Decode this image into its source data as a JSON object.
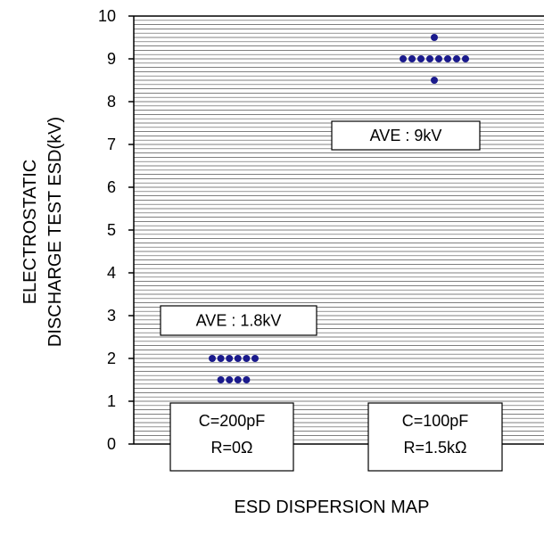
{
  "chart_data": {
    "type": "scatter",
    "ylabel_lines": [
      "ELECTROSTATIC",
      "DISCHARGE TEST ESD(kV)"
    ],
    "caption": "ESD DISPERSION MAP",
    "ylim": [
      0,
      10
    ],
    "y_ticks": [
      "0",
      "1",
      "2",
      "3",
      "4",
      "5",
      "6",
      "7",
      "8",
      "9",
      "10"
    ],
    "minor_grid_step": 0.1,
    "grid": true,
    "series": [
      {
        "condition_lines": [
          "C=200pF",
          "R=0Ω"
        ],
        "average_label": "AVE : 1.8kV",
        "points": [
          {
            "y": 2.0,
            "count": 6
          },
          {
            "y": 1.5,
            "count": 4
          }
        ]
      },
      {
        "condition_lines": [
          "C=100pF",
          "R=1.5kΩ"
        ],
        "average_label": "AVE : 9kV",
        "points": [
          {
            "y": 9.5,
            "count": 1
          },
          {
            "y": 9.0,
            "count": 8
          },
          {
            "y": 8.5,
            "count": 1
          }
        ]
      }
    ],
    "colors": {
      "point": "#1a1a8c",
      "grid": "#555555",
      "axis": "#000000",
      "box_border": "#000000",
      "box_fill": "#ffffff"
    }
  }
}
